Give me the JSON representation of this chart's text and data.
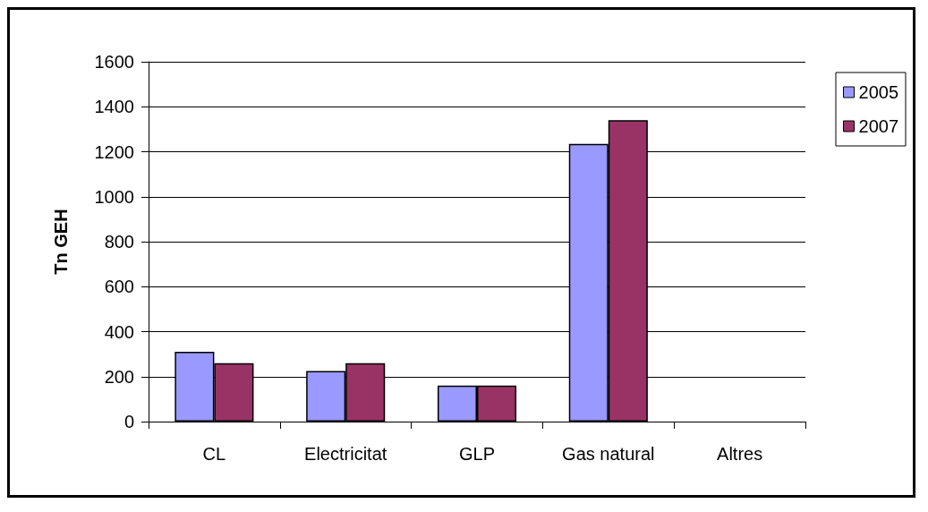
{
  "chart_data": {
    "type": "bar",
    "ylabel": "Tn GEH",
    "categories": [
      "CL",
      "Electricitat",
      "GLP",
      "Gas natural",
      "Altres"
    ],
    "series": [
      {
        "name": "2005",
        "color": "#9999ff",
        "values": [
          310,
          225,
          160,
          1235,
          null
        ]
      },
      {
        "name": "2007",
        "color": "#993366",
        "values": [
          260,
          260,
          160,
          1340,
          null
        ]
      }
    ],
    "ylim": [
      0,
      1600
    ],
    "yticks": [
      0,
      200,
      400,
      600,
      800,
      1000,
      1200,
      1400,
      1600
    ],
    "grid": "y",
    "legend": "right"
  }
}
